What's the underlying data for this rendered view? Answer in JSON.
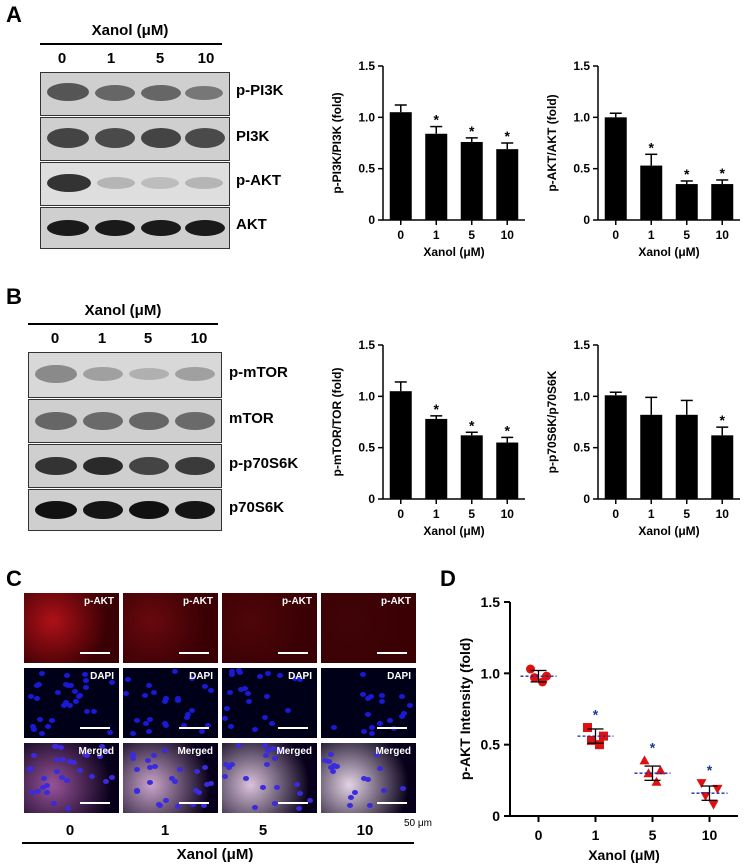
{
  "panels": {
    "A": "A",
    "B": "B",
    "C": "C",
    "D": "D"
  },
  "xanol_label": "Xanol (μM)",
  "concentrations": [
    "0",
    "1",
    "5",
    "10"
  ],
  "blots_A": [
    "p-PI3K",
    "PI3K",
    "p-AKT",
    "AKT"
  ],
  "blots_B": [
    "p-mTOR",
    "mTOR",
    "p-p70S6K",
    "p70S6K"
  ],
  "micro": {
    "row_labels": [
      "p-AKT",
      "DAPI",
      "Merged"
    ],
    "scale_label": "50 μm",
    "colors": {
      "red": "#c0141c",
      "blue": "#1a1ad6"
    }
  },
  "chart_data": [
    {
      "type": "bar",
      "categories": [
        "0",
        "1",
        "5",
        "10"
      ],
      "values": [
        1.05,
        0.84,
        0.76,
        0.69
      ],
      "errors": [
        0.07,
        0.07,
        0.04,
        0.06
      ],
      "significant": [
        false,
        true,
        true,
        true
      ],
      "ylabel": "p-PI3K/PI3K (fold)",
      "xlabel": "Xanol (μM)",
      "ylim": [
        0,
        1.5
      ],
      "yticks": [
        "0",
        "0.5",
        "1.0",
        "1.5"
      ]
    },
    {
      "type": "bar",
      "categories": [
        "0",
        "1",
        "5",
        "10"
      ],
      "values": [
        1.0,
        0.53,
        0.35,
        0.35
      ],
      "errors": [
        0.04,
        0.11,
        0.03,
        0.04
      ],
      "significant": [
        false,
        true,
        true,
        true
      ],
      "ylabel": "p-AKT/AKT (fold)",
      "xlabel": "Xanol (μM)",
      "ylim": [
        0,
        1.5
      ],
      "yticks": [
        "0",
        "0.5",
        "1.0",
        "1.5"
      ]
    },
    {
      "type": "bar",
      "categories": [
        "0",
        "1",
        "5",
        "10"
      ],
      "values": [
        1.05,
        0.78,
        0.62,
        0.55
      ],
      "errors": [
        0.09,
        0.03,
        0.03,
        0.05
      ],
      "significant": [
        false,
        true,
        true,
        true
      ],
      "ylabel": "p-mTOR/TOR (fold)",
      "xlabel": "Xanol (μM)",
      "ylim": [
        0,
        1.5
      ],
      "yticks": [
        "0",
        "0.5",
        "1.0",
        "1.5"
      ]
    },
    {
      "type": "bar",
      "categories": [
        "0",
        "1",
        "5",
        "10"
      ],
      "values": [
        1.01,
        0.82,
        0.82,
        0.62
      ],
      "errors": [
        0.03,
        0.17,
        0.14,
        0.08
      ],
      "significant": [
        false,
        false,
        false,
        true
      ],
      "ylabel": "p-p70S6K/p70S6K",
      "xlabel": "Xanol (μM)",
      "ylim": [
        0,
        1.5
      ],
      "yticks": [
        "0",
        "0.5",
        "1.0",
        "1.5"
      ]
    },
    {
      "type": "scatter",
      "categories": [
        "0",
        "1",
        "5",
        "10"
      ],
      "points": [
        [
          1.03,
          0.98,
          0.97,
          0.94
        ],
        [
          0.62,
          0.56,
          0.53,
          0.5
        ],
        [
          0.39,
          0.32,
          0.3,
          0.24
        ],
        [
          0.23,
          0.19,
          0.14,
          0.08
        ]
      ],
      "means": [
        0.98,
        0.56,
        0.3,
        0.16
      ],
      "errors": [
        0.04,
        0.05,
        0.05,
        0.05
      ],
      "significant": [
        false,
        true,
        true,
        true
      ],
      "markers": [
        "circle",
        "square",
        "triangle",
        "triangle-down"
      ],
      "marker_color": "#e01010",
      "mean_line_color": "#1a2aa0",
      "star_color": "#1a3a9a",
      "ylabel": "p-AKT Intensity (fold)",
      "xlabel": "Xanol (μM)",
      "ylim": [
        0,
        1.5
      ],
      "yticks": [
        "0",
        "0.5",
        "1.0",
        "1.5"
      ]
    }
  ]
}
